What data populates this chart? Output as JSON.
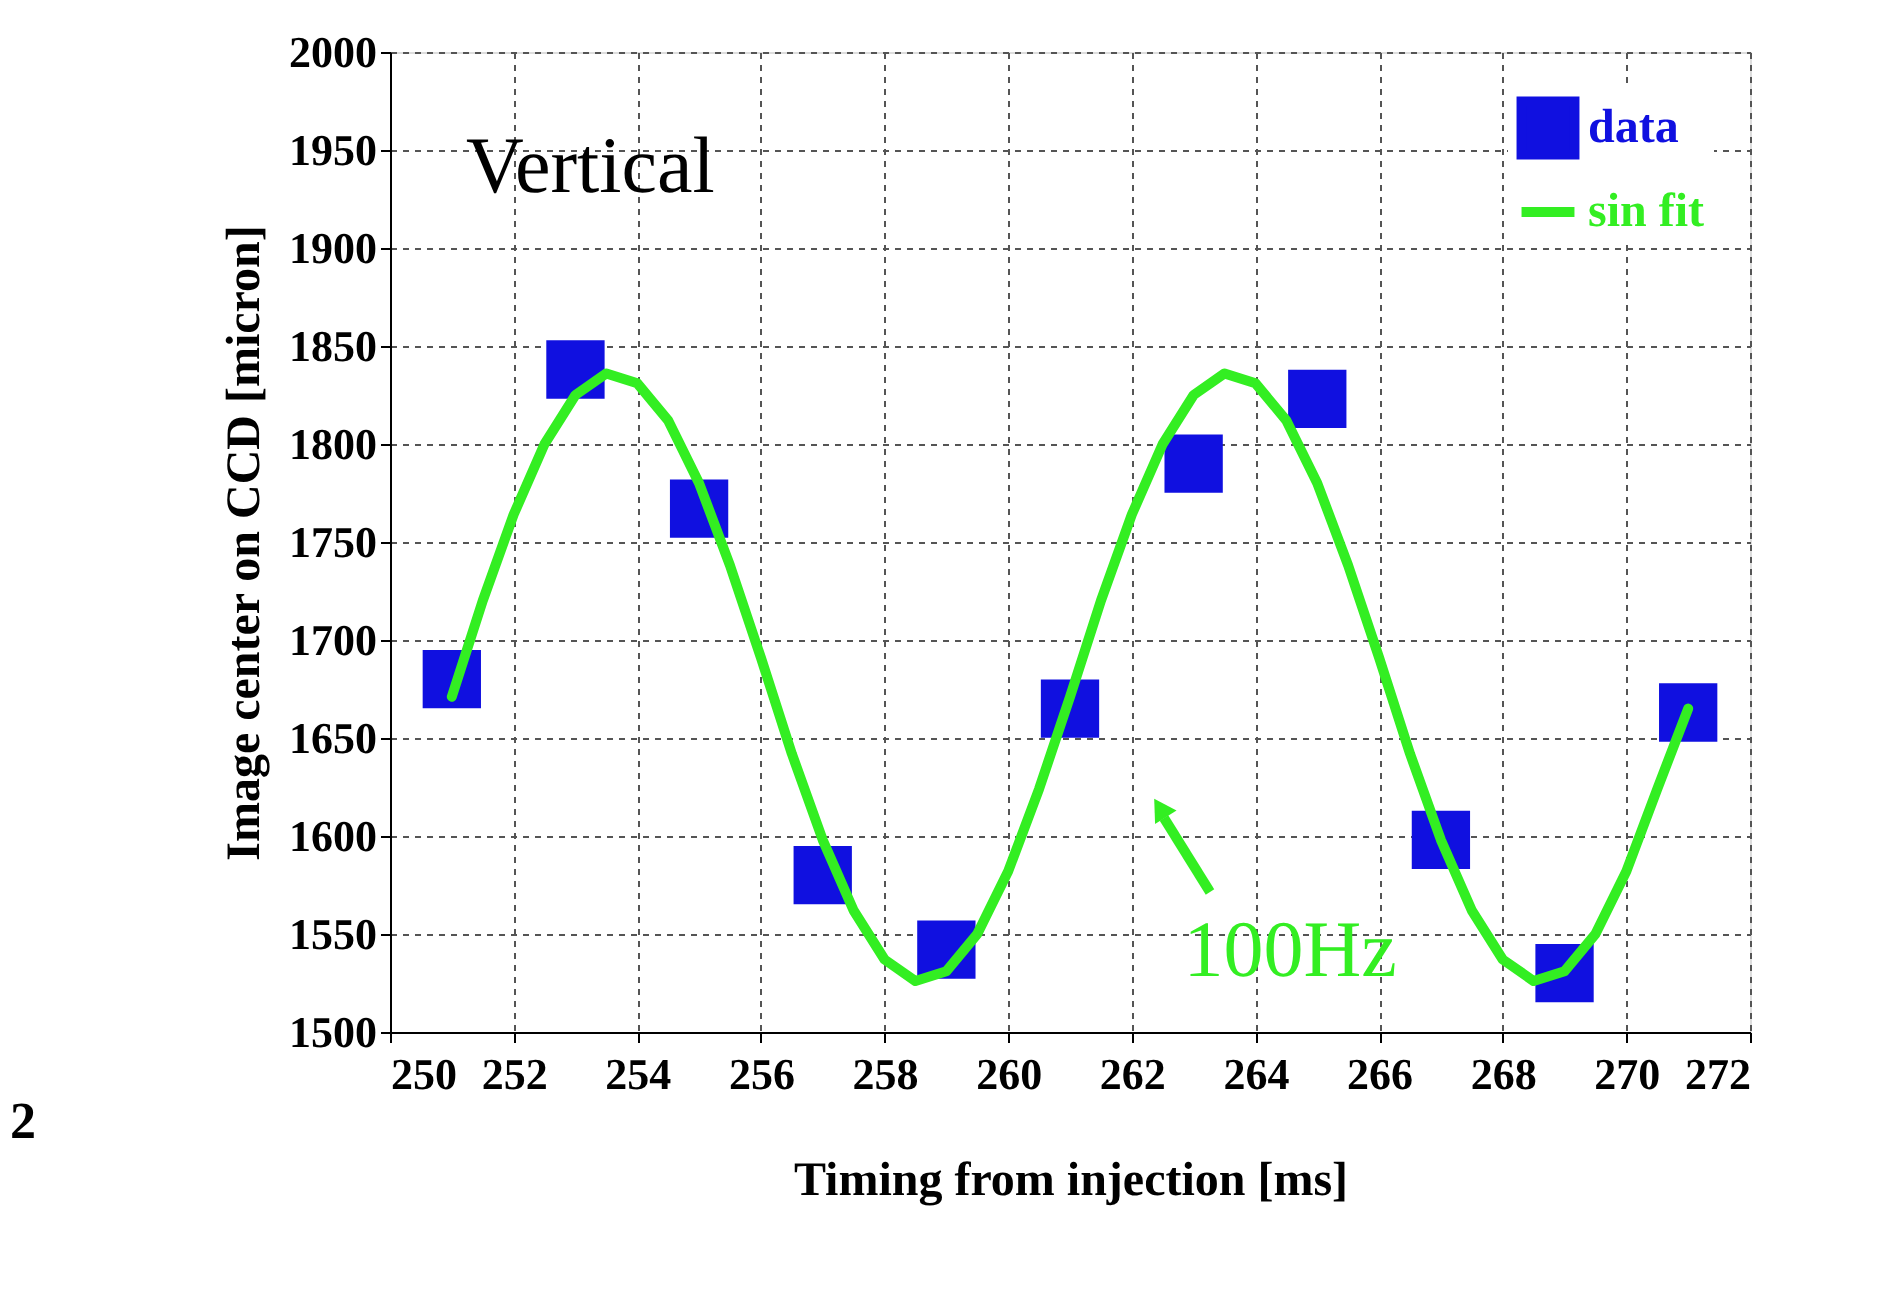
{
  "chart_data": {
    "type": "scatter",
    "xlabel": "Timing from injection [ms]",
    "ylabel": "Image center on CCD [micron]",
    "xlim": [
      250,
      272
    ],
    "xticks": [
      250,
      252,
      254,
      256,
      258,
      260,
      262,
      264,
      266,
      268,
      270,
      272
    ],
    "ylim": [
      1500,
      2000
    ],
    "yticks": [
      1500,
      1550,
      1600,
      1650,
      1700,
      1750,
      1800,
      1850,
      1900,
      1950,
      2000
    ],
    "grid": true,
    "legend": "top right",
    "series": [
      {
        "name": "data",
        "marker": "square",
        "color": "#1010e0",
        "x": [
          251,
          253,
          255,
          257,
          259,
          261,
          263,
          265,
          267,
          269,
          271
        ],
        "values": [
          1680,
          1838,
          1767,
          1580,
          1542,
          1665,
          1790,
          1823,
          1598,
          1530,
          1663
        ]
      },
      {
        "name": "sin fit",
        "type": "line",
        "marker": "none",
        "line_style": "solid",
        "color": "#33ee22",
        "x": [
          251,
          251.5,
          252,
          252.5,
          253,
          253.5,
          254,
          254.5,
          255,
          255.5,
          256,
          256.5,
          257,
          257.5,
          258,
          258.5,
          259,
          259.5,
          260,
          260.5,
          261,
          261.5,
          262,
          262.5,
          263,
          263.5,
          264,
          264.5,
          265,
          265.5,
          266,
          266.5,
          267,
          267.5,
          268,
          268.5,
          269,
          269.5,
          270,
          270.5,
          271
        ],
        "values": [
          1671,
          1720,
          1764,
          1800,
          1825,
          1836,
          1831,
          1812,
          1780,
          1738,
          1691,
          1642,
          1598,
          1562,
          1537,
          1526,
          1531,
          1550,
          1582,
          1624,
          1671,
          1720,
          1764,
          1800,
          1825,
          1836,
          1831,
          1812,
          1780,
          1738,
          1691,
          1642,
          1598,
          1562,
          1537,
          1526,
          1531,
          1550,
          1582,
          1624,
          1665
        ]
      }
    ],
    "annotations": [
      "Vertical",
      "100Hz",
      "2"
    ]
  }
}
